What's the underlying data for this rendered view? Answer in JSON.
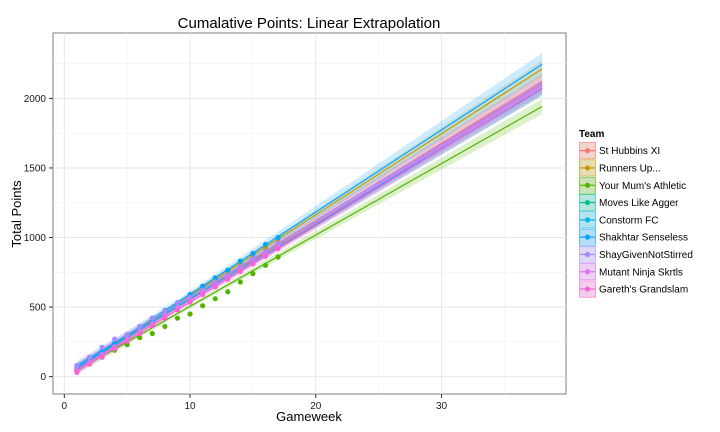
{
  "chart_data": {
    "type": "line",
    "title": "Cumalative Points: Linear Extrapolation",
    "xlabel": "Gameweek",
    "ylabel": "Total Points",
    "xlim": [
      -0.9,
      39.9
    ],
    "ylim": [
      -125,
      2470
    ],
    "x_ticks": [
      0,
      10,
      20,
      30
    ],
    "y_ticks": [
      0,
      500,
      1000,
      1500,
      2000
    ],
    "x_tick_labels": [
      "0",
      "10",
      "20",
      "30"
    ],
    "y_tick_labels": [
      "0",
      "500",
      "1000",
      "1500",
      "2000"
    ],
    "grid": true,
    "legend": {
      "title": "Team",
      "position": "right"
    },
    "observed_gameweeks": [
      1,
      17
    ],
    "extrapolate_to": 38,
    "series": [
      {
        "name": "St Hubbins XI",
        "color": "#F8766D",
        "intercept": 2,
        "slope": 55.8,
        "band": 40,
        "points": [
          [
            1,
            45
          ],
          [
            2,
            100
          ],
          [
            3,
            160
          ],
          [
            4,
            205
          ],
          [
            5,
            265
          ],
          [
            6,
            320
          ],
          [
            7,
            385
          ],
          [
            8,
            440
          ],
          [
            9,
            500
          ],
          [
            10,
            555
          ],
          [
            11,
            610
          ],
          [
            12,
            670
          ],
          [
            13,
            720
          ],
          [
            14,
            790
          ],
          [
            15,
            840
          ],
          [
            16,
            900
          ],
          [
            17,
            950
          ]
        ]
      },
      {
        "name": "Runners Up...",
        "color": "#C49A00",
        "intercept": 0,
        "slope": 58.2,
        "band": 45,
        "points": [
          [
            1,
            50
          ],
          [
            2,
            110
          ],
          [
            3,
            165
          ],
          [
            4,
            220
          ],
          [
            5,
            285
          ],
          [
            6,
            345
          ],
          [
            7,
            405
          ],
          [
            8,
            460
          ],
          [
            9,
            515
          ],
          [
            10,
            580
          ],
          [
            11,
            640
          ],
          [
            12,
            700
          ],
          [
            13,
            760
          ],
          [
            14,
            820
          ],
          [
            15,
            870
          ],
          [
            16,
            930
          ],
          [
            17,
            990
          ]
        ]
      },
      {
        "name": "Your Mum's Athletic",
        "color": "#53B400",
        "intercept": -8,
        "slope": 51.3,
        "band": 40,
        "points": [
          [
            1,
            40
          ],
          [
            2,
            90
          ],
          [
            3,
            140
          ],
          [
            4,
            190
          ],
          [
            5,
            230
          ],
          [
            6,
            280
          ],
          [
            7,
            310
          ],
          [
            8,
            360
          ],
          [
            9,
            420
          ],
          [
            10,
            450
          ],
          [
            11,
            510
          ],
          [
            12,
            560
          ],
          [
            13,
            610
          ],
          [
            14,
            680
          ],
          [
            15,
            740
          ],
          [
            16,
            800
          ],
          [
            17,
            860
          ]
        ]
      },
      {
        "name": "Moves Like Agger",
        "color": "#00C094",
        "intercept": 10,
        "slope": 54.2,
        "band": 38,
        "points": [
          [
            1,
            60
          ],
          [
            2,
            115
          ],
          [
            3,
            165
          ],
          [
            4,
            220
          ],
          [
            5,
            275
          ],
          [
            6,
            330
          ],
          [
            7,
            385
          ],
          [
            8,
            440
          ],
          [
            9,
            490
          ],
          [
            10,
            545
          ],
          [
            11,
            600
          ],
          [
            12,
            655
          ],
          [
            13,
            710
          ],
          [
            14,
            765
          ],
          [
            15,
            820
          ],
          [
            16,
            880
          ],
          [
            17,
            930
          ]
        ]
      },
      {
        "name": "Constorm FC",
        "color": "#00B6EB",
        "intercept": 22,
        "slope": 53.9,
        "band": 38,
        "points": [
          [
            1,
            75
          ],
          [
            2,
            130
          ],
          [
            3,
            180
          ],
          [
            4,
            235
          ],
          [
            5,
            290
          ],
          [
            6,
            345
          ],
          [
            7,
            400
          ],
          [
            8,
            450
          ],
          [
            9,
            505
          ],
          [
            10,
            560
          ],
          [
            11,
            615
          ],
          [
            12,
            670
          ],
          [
            13,
            725
          ],
          [
            14,
            780
          ],
          [
            15,
            830
          ],
          [
            16,
            885
          ],
          [
            17,
            940
          ]
        ]
      },
      {
        "name": "Shakhtar Senseless",
        "color": "#06A4FF",
        "intercept": 3,
        "slope": 59.0,
        "band": 60,
        "points": [
          [
            1,
            60
          ],
          [
            2,
            120
          ],
          [
            3,
            175
          ],
          [
            4,
            240
          ],
          [
            5,
            300
          ],
          [
            6,
            360
          ],
          [
            7,
            420
          ],
          [
            8,
            475
          ],
          [
            9,
            530
          ],
          [
            10,
            590
          ],
          [
            11,
            650
          ],
          [
            12,
            710
          ],
          [
            13,
            765
          ],
          [
            14,
            830
          ],
          [
            15,
            885
          ],
          [
            16,
            950
          ],
          [
            17,
            1000
          ]
        ]
      },
      {
        "name": "ShayGivenNotStirred",
        "color": "#A58AFF",
        "intercept": 30,
        "slope": 54.6,
        "band": 50,
        "points": [
          [
            1,
            80
          ],
          [
            2,
            140
          ],
          [
            3,
            210
          ],
          [
            4,
            270
          ],
          [
            5,
            300
          ],
          [
            6,
            360
          ],
          [
            7,
            420
          ],
          [
            8,
            470
          ],
          [
            9,
            530
          ],
          [
            10,
            570
          ],
          [
            11,
            620
          ],
          [
            12,
            680
          ],
          [
            13,
            730
          ],
          [
            14,
            790
          ],
          [
            15,
            850
          ],
          [
            16,
            900
          ],
          [
            17,
            960
          ]
        ]
      },
      {
        "name": "Mutant Ninja Skrtls",
        "color": "#DF70F8",
        "intercept": -2,
        "slope": 55.2,
        "band": 40,
        "points": [
          [
            1,
            50
          ],
          [
            2,
            105
          ],
          [
            3,
            160
          ],
          [
            4,
            215
          ],
          [
            5,
            270
          ],
          [
            6,
            325
          ],
          [
            7,
            380
          ],
          [
            8,
            440
          ],
          [
            9,
            495
          ],
          [
            10,
            550
          ],
          [
            11,
            605
          ],
          [
            12,
            660
          ],
          [
            13,
            715
          ],
          [
            14,
            770
          ],
          [
            15,
            825
          ],
          [
            16,
            880
          ],
          [
            17,
            935
          ]
        ]
      },
      {
        "name": "Gareth's Grandslam",
        "color": "#FB61D7",
        "intercept": -15,
        "slope": 55.0,
        "band": 40,
        "points": [
          [
            1,
            30
          ],
          [
            2,
            90
          ],
          [
            3,
            140
          ],
          [
            4,
            200
          ],
          [
            5,
            255
          ],
          [
            6,
            310
          ],
          [
            7,
            365
          ],
          [
            8,
            420
          ],
          [
            9,
            480
          ],
          [
            10,
            535
          ],
          [
            11,
            590
          ],
          [
            12,
            645
          ],
          [
            13,
            700
          ],
          [
            14,
            755
          ],
          [
            15,
            810
          ],
          [
            16,
            865
          ],
          [
            17,
            920
          ]
        ]
      }
    ]
  }
}
